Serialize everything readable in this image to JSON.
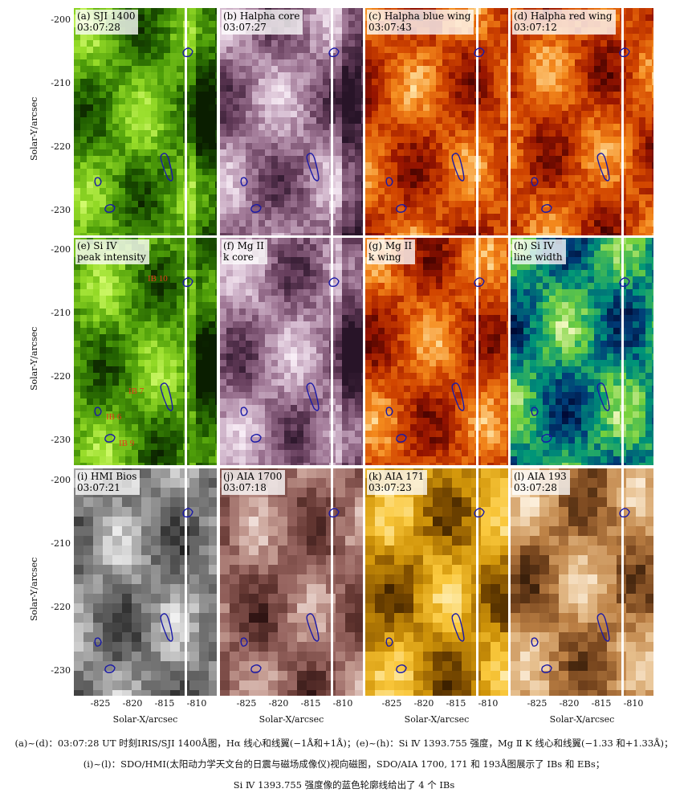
{
  "panels": [
    {
      "label": "(a) SJI 1400\n03:07:28",
      "cmap": "green"
    },
    {
      "label": "(b) Halpha core\n03:07:27",
      "cmap": "purple"
    },
    {
      "label": "(c) Halpha blue wing\n03:07:43",
      "cmap": "red"
    },
    {
      "label": "(d) Halpha red wing\n03:07:12",
      "cmap": "red"
    },
    {
      "label": "(e) Si IV\npeak intensity",
      "cmap": "green"
    },
    {
      "label": "(f) Mg II\nk core",
      "cmap": "purple"
    },
    {
      "label": "(g) Mg II\nk wing",
      "cmap": "red"
    },
    {
      "label": "(h) Si IV\nline width",
      "cmap": "rainbow"
    },
    {
      "label": "(i) HMI Bios\n03:07:21",
      "cmap": "gray"
    },
    {
      "label": "(j) AIA 1700\n03:07:18",
      "cmap": "brown"
    },
    {
      "label": "(k) AIA 171\n03:07:23",
      "cmap": "gold"
    },
    {
      "label": "(l) AIA 193\n03:07:28",
      "cmap": "copper"
    }
  ],
  "ib_labels": [
    "IB 10",
    "IB 7",
    "IB 6",
    "IB 9"
  ],
  "axes": {
    "ylabel": "Solar-Y/arcsec",
    "xlabel": "Solar-X/arcsec",
    "yticks": [
      "-200",
      "-210",
      "-220",
      "-230"
    ],
    "xticks": [
      "-825",
      "-820",
      "-815",
      "-810"
    ]
  },
  "caption": {
    "line1": "(a)~(d)：03:07:28 UT 时刻IRIS/SJI 1400Å图，Hα 线心和线翼(−1Å和+1Å)；(e)~(h)：Si Ⅳ 1393.755 强度，Mg Ⅱ K 线心和线翼(−1.33 和+1.33Å)；",
    "line2": "(i)~(l)：SDO/HMI(太阳动力学天文台的日震与磁场成像仪)视向磁图，SDO/AIA 1700, 171 和 193Å图展示了 IBs 和 EBs；",
    "line3": "Si Ⅳ 1393.755 强度像的蓝色轮廓线给出了 4 个 IBs"
  },
  "colors": {
    "contour": "#1a1aa8",
    "slit": "#ffffff",
    "ib_label": "#e23b1a"
  }
}
